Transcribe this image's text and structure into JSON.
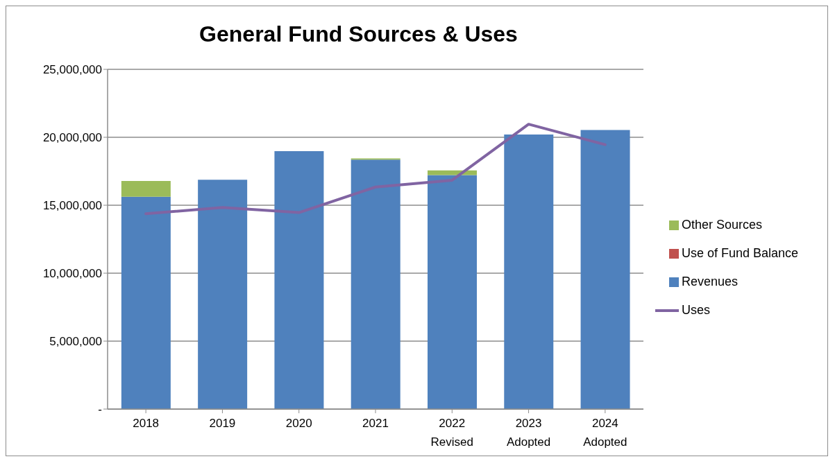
{
  "chart_data": {
    "type": "bar",
    "title": "General Fund Sources & Uses",
    "categories": [
      "2018",
      "2019",
      "2020",
      "2021",
      "2022 Revised",
      "2023 Adopted",
      "2024 Adopted"
    ],
    "stacked": true,
    "series": [
      {
        "name": "Revenues",
        "color": "#4f81bd",
        "values": [
          15630000,
          16870000,
          18980000,
          18360000,
          17220000,
          20200000,
          20540000
        ]
      },
      {
        "name": "Use of Fund Balance",
        "color": "#c0504d",
        "values": [
          0,
          0,
          0,
          0,
          0,
          0,
          0
        ]
      },
      {
        "name": "Other Sources",
        "color": "#9bbb59",
        "values": [
          1160000,
          0,
          0,
          80000,
          340000,
          0,
          0
        ]
      },
      {
        "name": "Uses",
        "type": "line",
        "color": "#8064a2",
        "values": [
          14370000,
          14840000,
          14460000,
          16340000,
          16840000,
          20960000,
          19460000
        ]
      }
    ],
    "ylim": [
      0,
      25000000
    ],
    "yticks": [
      {
        "value": 0,
        "label": "-"
      },
      {
        "value": 5000000,
        "label": "5,000,000"
      },
      {
        "value": 10000000,
        "label": "10,000,000"
      },
      {
        "value": 15000000,
        "label": "15,000,000"
      },
      {
        "value": 20000000,
        "label": "20,000,000"
      },
      {
        "value": 25000000,
        "label": "25,000,000"
      }
    ],
    "grid": "y",
    "legend": "right",
    "marker": "none"
  }
}
